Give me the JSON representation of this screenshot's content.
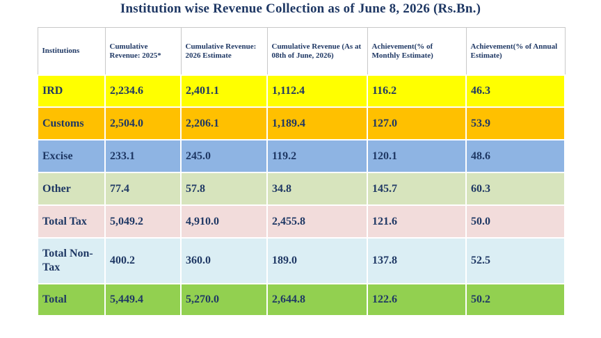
{
  "title": "Institution wise Revenue Collection as of June 8, 2026 (Rs.Bn.)",
  "headers": [
    "Institutions",
    "Cumulative Revenue: 2025*",
    "Cumulative Revenue: 2026 Estimate",
    "Cumulative Revenue (As at 08th of June, 2026)",
    "Achievement(% of Monthly Estimate)",
    "Achievement(% of Annual Estimate)"
  ],
  "colors": {
    "ird": "#ffff00",
    "customs": "#ffc000",
    "excise": "#8eb4e3",
    "other": "#d7e4bd",
    "total_tax": "#f2dcdb",
    "total_non_tax": "#dbeef4",
    "total": "#92d050"
  },
  "rows": [
    {
      "name": "IRD",
      "c2025": "2,234.6",
      "e2026": "2,401.1",
      "actual": "1,112.4",
      "monthly": "116.2",
      "annual": "46.3"
    },
    {
      "name": "Customs",
      "c2025": "2,504.0",
      "e2026": "2,206.1",
      "actual": "1,189.4",
      "monthly": "127.0",
      "annual": "53.9"
    },
    {
      "name": "Excise",
      "c2025": "233.1",
      "e2026": "245.0",
      "actual": "119.2",
      "monthly": "120.1",
      "annual": "48.6"
    },
    {
      "name": "Other",
      "c2025": "77.4",
      "e2026": "57.8",
      "actual": "34.8",
      "monthly": "145.7",
      "annual": "60.3"
    },
    {
      "name": "Total Tax",
      "c2025": "5,049.2",
      "e2026": "4,910.0",
      "actual": "2,455.8",
      "monthly": "121.6",
      "annual": "50.0"
    },
    {
      "name": "Total Non-Tax",
      "c2025": "400.2",
      "e2026": "360.0",
      "actual": "189.0",
      "monthly": "137.8",
      "annual": "52.5"
    },
    {
      "name": "Total",
      "c2025": "5,449.4",
      "e2026": "5,270.0",
      "actual": "2,644.8",
      "monthly": "122.6",
      "annual": "50.2"
    }
  ]
}
